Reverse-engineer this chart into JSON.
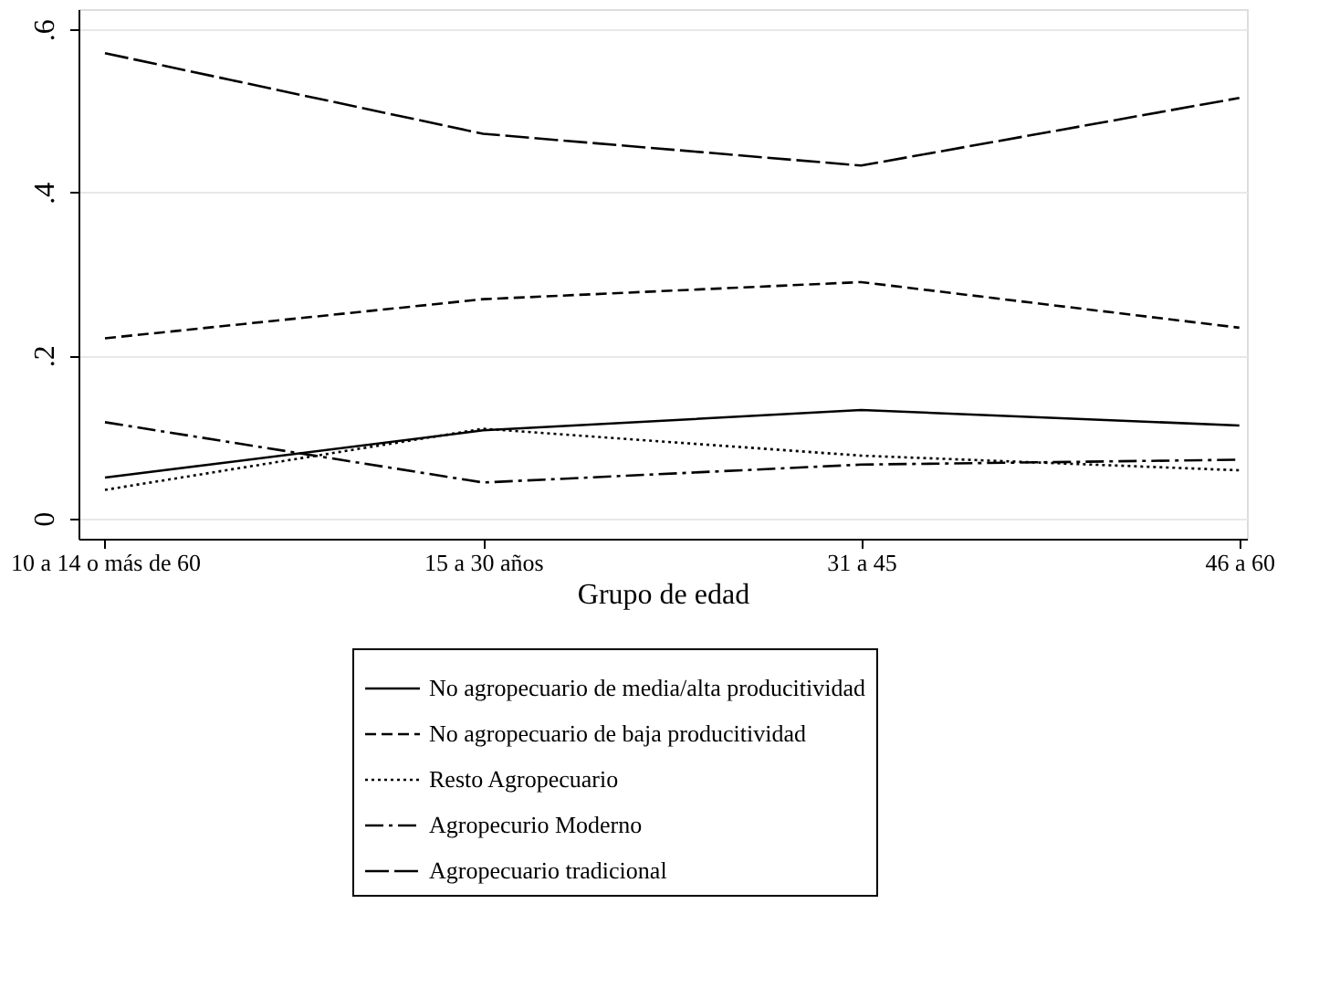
{
  "chart_data": {
    "type": "line",
    "xlabel": "Grupo de edad",
    "categories": [
      "10 a 14 o más de 60",
      "15 a 30 años",
      "31 a 45",
      "46 a 60"
    ],
    "series": [
      {
        "name": "No agropecuario de media/alta producitividad",
        "color": "#000000",
        "line_style": "solid",
        "values": [
          0.05,
          0.108,
          0.133,
          0.114
        ]
      },
      {
        "name": "No agropecuario de baja producitividad",
        "color": "#000000",
        "line_style": "dashed",
        "values": [
          0.221,
          0.269,
          0.29,
          0.234
        ]
      },
      {
        "name": "Resto Agropecuario",
        "color": "#000000",
        "line_style": "dotted",
        "values": [
          0.035,
          0.11,
          0.077,
          0.059
        ]
      },
      {
        "name": "Agropecurio Moderno",
        "color": "#000000",
        "line_style": "dashed",
        "values": [
          0.118,
          0.044,
          0.066,
          0.072
        ]
      },
      {
        "name": "Agropecuario tradicional",
        "color": "#000000",
        "line_style": "dashed",
        "values": [
          0.571,
          0.472,
          0.433,
          0.516
        ]
      }
    ],
    "ylim": [
      -0.025,
      0.625
    ],
    "yticks": [
      0,
      {
        "value": 0.2,
        "label": ".2"
      },
      {
        "value": 0.4,
        "label": ".4"
      },
      {
        "value": 0.6,
        "label": ".6"
      }
    ],
    "grid": "y",
    "legend": "bottom",
    "marker": "none"
  }
}
